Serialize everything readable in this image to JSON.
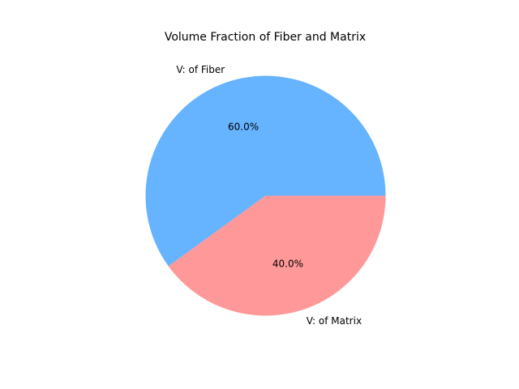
{
  "chart_data": {
    "type": "pie",
    "title": "Volume Fraction of Fiber and Matrix",
    "categories": [
      "V: of Fiber",
      "V: of Matrix"
    ],
    "values": [
      60.0,
      40.0
    ],
    "autopct_labels": [
      "60.0%",
      "40.0%"
    ],
    "colors": [
      "#66b3ff",
      "#ff9999"
    ],
    "start_angle_deg": 0,
    "legend": "none"
  }
}
